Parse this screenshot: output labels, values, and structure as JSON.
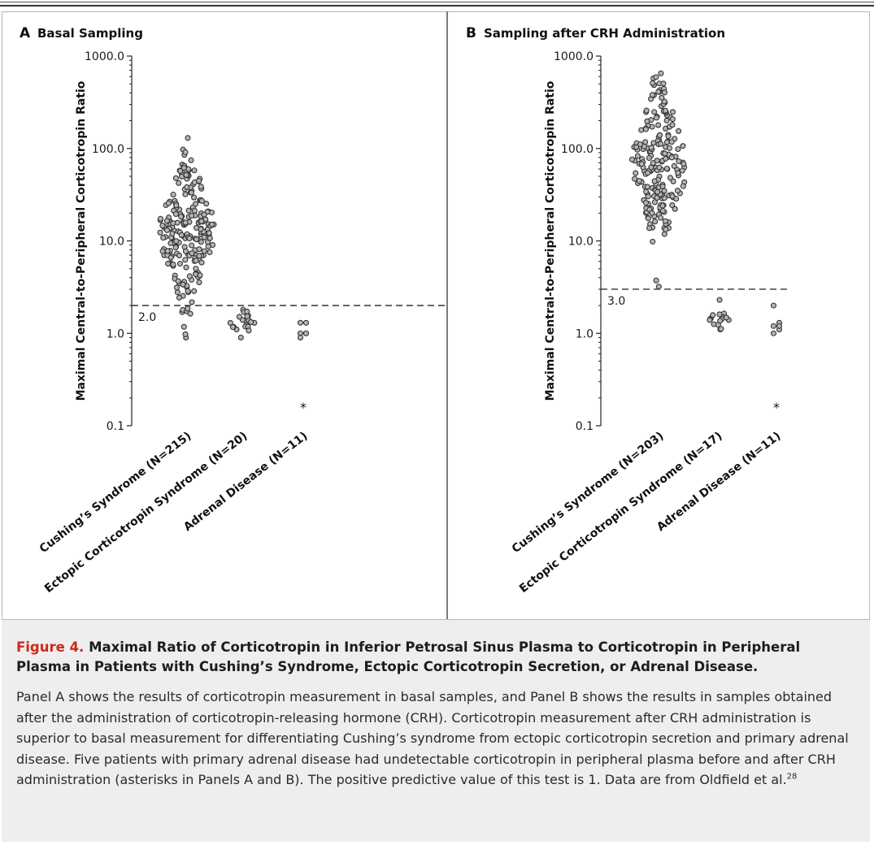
{
  "chart_data": [
    {
      "type": "scatter",
      "panel_letter": "A",
      "title": "Basal Sampling",
      "ylabel": "Maximal Central-to-Peripheral Corticotropin Ratio",
      "yscale": "log",
      "ylim": [
        0.1,
        1000.0
      ],
      "yticks": [
        0.1,
        1.0,
        10.0,
        100.0,
        1000.0
      ],
      "ytick_labels": [
        "0.1",
        "1.0",
        "10.0",
        "100.0",
        "1000.0"
      ],
      "categories": [
        "Cushing’s Syndrome (N=215)",
        "Ectopic Corticotropin Syndrome (N=20)",
        "Adrenal Disease (N=11)"
      ],
      "threshold": {
        "value": 2.0,
        "label": "2.0"
      },
      "series": [
        {
          "category_index": 0,
          "n": 215,
          "min": 0.9,
          "max": 130,
          "median": 13
        },
        {
          "category_index": 1,
          "n": 20,
          "min": 0.9,
          "max": 1.8,
          "median": 1.3
        },
        {
          "category_index": 2,
          "n": 6,
          "values": [
            1.3,
            1.3,
            1.0,
            1.0,
            0.9,
            1.0
          ]
        }
      ],
      "undetectable_marker": {
        "category_index": 2,
        "symbol": "*",
        "y": 0.16
      }
    },
    {
      "type": "scatter",
      "panel_letter": "B",
      "title": "Sampling after CRH Administration",
      "ylabel": "Maximal Central-to-Peripheral Corticotropin Ratio",
      "yscale": "log",
      "ylim": [
        0.1,
        1000.0
      ],
      "yticks": [
        0.1,
        1.0,
        10.0,
        100.0,
        1000.0
      ],
      "ytick_labels": [
        "0.1",
        "1.0",
        "10.0",
        "100.0",
        "1000.0"
      ],
      "categories": [
        "Cushing’s Syndrome (N=203)",
        "Ectopic Corticotropin Syndrome (N=17)",
        "Adrenal Disease (N=11)"
      ],
      "threshold": {
        "value": 3.0,
        "label": "3.0"
      },
      "series": [
        {
          "category_index": 0,
          "n": 203,
          "min": 3.2,
          "max": 650,
          "median": 70
        },
        {
          "category_index": 1,
          "n": 17,
          "min": 1.1,
          "max": 2.3,
          "median": 1.5
        },
        {
          "category_index": 2,
          "n": 6,
          "values": [
            2.0,
            1.3,
            1.2,
            1.1,
            1.0,
            1.2
          ]
        }
      ],
      "undetectable_marker": {
        "category_index": 2,
        "symbol": "*",
        "y": 0.16
      }
    }
  ],
  "caption": {
    "figure_number": "Figure 4.",
    "title": "Maximal Ratio of Corticotropin in Inferior Petrosal Sinus Plasma to Corticotropin in Peripheral Plasma in Patients with Cushing’s Syndrome, Ectopic Corticotropin Secretion, or Adrenal Disease.",
    "body": "Panel A shows the results of corticotropin measurement in basal samples, and Panel B shows the results in samples obtained after the administration of corticotropin-releasing hormone (CRH). Corticotropin measurement after CRH administration is superior to basal measurement for differentiating Cushing’s syndrome from ectopic corticotropin secretion and primary adrenal disease. Five patients with primary adrenal disease had undetectable corticotropin in peripheral plasma before and after CRH administration (asterisks in Panels A and B). The positive predictive value of this test is 1. Data are from Oldfield et al.",
    "reference": "28"
  },
  "colors": {
    "marker_fill": "#b4b4b4",
    "marker_stroke": "#333333",
    "figure_number": "#cc2a1d",
    "caption_bg": "#eeeeee"
  }
}
